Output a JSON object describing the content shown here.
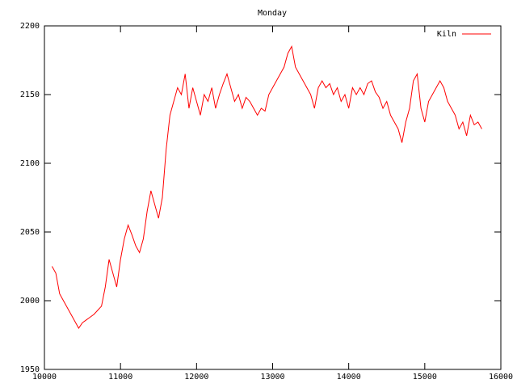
{
  "chart_data": {
    "type": "line",
    "title": "Monday",
    "x": [
      10100,
      10150,
      10200,
      10250,
      10300,
      10350,
      10400,
      10450,
      10500,
      10550,
      10600,
      10650,
      10700,
      10750,
      10800,
      10850,
      10900,
      10950,
      11000,
      11050,
      11100,
      11150,
      11200,
      11250,
      11300,
      11350,
      11400,
      11450,
      11500,
      11550,
      11600,
      11650,
      11700,
      11750,
      11800,
      11850,
      11900,
      11950,
      12000,
      12050,
      12100,
      12150,
      12200,
      12250,
      12300,
      12350,
      12400,
      12450,
      12500,
      12550,
      12600,
      12650,
      12700,
      12750,
      12800,
      12850,
      12900,
      12950,
      13000,
      13050,
      13100,
      13150,
      13200,
      13250,
      13300,
      13350,
      13400,
      13450,
      13500,
      13550,
      13600,
      13650,
      13700,
      13750,
      13800,
      13850,
      13900,
      13950,
      14000,
      14050,
      14100,
      14150,
      14200,
      14250,
      14300,
      14350,
      14400,
      14450,
      14500,
      14550,
      14600,
      14650,
      14700,
      14750,
      14800,
      14850,
      14900,
      14950,
      15000,
      15050,
      15100,
      15150,
      15200,
      15250,
      15300,
      15350,
      15400,
      15450,
      15500,
      15550,
      15600,
      15650,
      15700,
      15750
    ],
    "series": [
      {
        "name": "Kiln",
        "color": "#ff0000",
        "values": [
          2025,
          2020,
          2005,
          2000,
          1995,
          1990,
          1985,
          1980,
          1984,
          1986,
          1988,
          1990,
          1993,
          1996,
          2010,
          2030,
          2020,
          2010,
          2030,
          2045,
          2055,
          2048,
          2040,
          2035,
          2045,
          2065,
          2080,
          2070,
          2060,
          2075,
          2110,
          2135,
          2145,
          2155,
          2150,
          2165,
          2140,
          2155,
          2145,
          2135,
          2150,
          2145,
          2155,
          2140,
          2150,
          2158,
          2165,
          2155,
          2145,
          2150,
          2140,
          2148,
          2145,
          2140,
          2135,
          2140,
          2138,
          2150,
          2155,
          2160,
          2165,
          2170,
          2180,
          2185,
          2170,
          2165,
          2160,
          2155,
          2150,
          2140,
          2155,
          2160,
          2155,
          2158,
          2150,
          2155,
          2145,
          2150,
          2140,
          2155,
          2150,
          2155,
          2150,
          2158,
          2160,
          2152,
          2148,
          2140,
          2145,
          2135,
          2130,
          2125,
          2115,
          2130,
          2140,
          2160,
          2165,
          2140,
          2130,
          2145,
          2150,
          2155,
          2160,
          2155,
          2145,
          2140,
          2135,
          2125,
          2130,
          2120,
          2135,
          2128,
          2130,
          2125
        ]
      }
    ],
    "xlim": [
      10000,
      16000
    ],
    "ylim": [
      1950,
      2200
    ],
    "xticks": [
      10000,
      11000,
      12000,
      13000,
      14000,
      15000,
      16000
    ],
    "yticks": [
      1950,
      2000,
      2050,
      2100,
      2150,
      2200
    ],
    "legend": "upper right"
  }
}
